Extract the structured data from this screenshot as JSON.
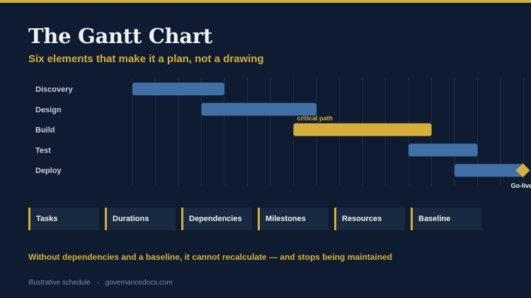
{
  "header": {
    "title": "The Gantt Chart",
    "subtitle": "Six elements that make it a plan, not a drawing"
  },
  "chart_data": {
    "type": "gantt",
    "x": {
      "min": 0,
      "max": 17,
      "grid": true
    },
    "tasks": [
      {
        "label": "Discovery",
        "start": 0,
        "end": 4,
        "critical": false
      },
      {
        "label": "Design",
        "start": 3,
        "end": 8,
        "critical": false
      },
      {
        "label": "Build",
        "start": 7,
        "end": 13,
        "critical": true,
        "annotation": "critical path"
      },
      {
        "label": "Test",
        "start": 12,
        "end": 15,
        "critical": false
      },
      {
        "label": "Deploy",
        "start": 14,
        "end": 17,
        "critical": false
      }
    ],
    "milestones": [
      {
        "label": "Go-live",
        "at": 17,
        "row": 4
      }
    ],
    "colors": {
      "bar": "#4170a8",
      "critical": "#d6ae3c",
      "milestone": "#d6ae3c",
      "grid": "#1f2d45"
    }
  },
  "elements": [
    "Tasks",
    "Durations",
    "Dependencies",
    "Milestones",
    "Resources",
    "Baseline"
  ],
  "footer": {
    "message": "Without dependencies and a baseline, it cannot recalculate — and stops being maintained",
    "source": "Illustrative schedule",
    "separator": "·",
    "site": "governancedocs.com"
  }
}
